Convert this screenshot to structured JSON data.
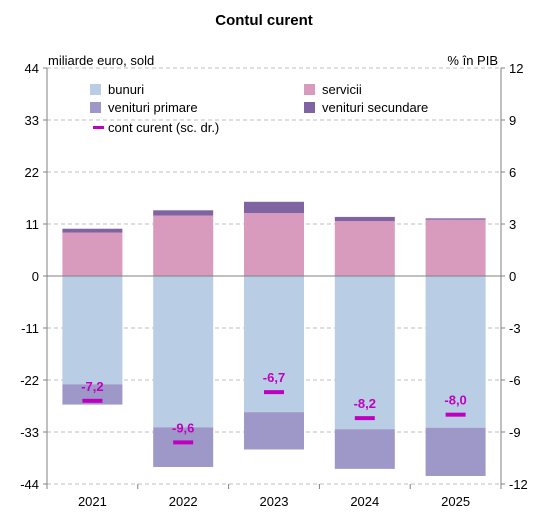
{
  "chart_data": {
    "type": "bar",
    "title": "Contul curent",
    "left_unit": "miliarde euro, sold",
    "right_unit": "% în PIB",
    "categories": [
      "2021",
      "2022",
      "2023",
      "2024",
      "2025"
    ],
    "ylim": [
      -44,
      44
    ],
    "yticks": [
      44,
      33,
      22,
      11,
      0,
      -11,
      -22,
      -33,
      -44
    ],
    "y2lim": [
      -12,
      12
    ],
    "y2ticks": [
      12,
      9,
      6,
      3,
      0,
      -3,
      -6,
      -9,
      -12
    ],
    "grid": true,
    "series": [
      {
        "name": "bunuri",
        "color": "#b9cde5",
        "values": [
          -22.9,
          -32.0,
          -28.8,
          -32.4,
          -32.1
        ],
        "axis": "left",
        "kind": "bar"
      },
      {
        "name": "servicii",
        "color": "#d99bbd",
        "values": [
          9.2,
          12.8,
          13.3,
          11.6,
          11.9
        ],
        "axis": "left",
        "kind": "bar"
      },
      {
        "name": "venituri primare",
        "color": "#9e98c8",
        "values": [
          -4.3,
          -8.4,
          -7.9,
          -8.4,
          -10.2
        ],
        "axis": "left",
        "kind": "bar"
      },
      {
        "name": "venituri secundare",
        "color": "#8064a2",
        "values": [
          0.8,
          1.1,
          2.4,
          0.9,
          0.3
        ],
        "axis": "left",
        "kind": "bar"
      },
      {
        "name": "cont curent (sc. dr.)",
        "color": "#c000c0",
        "values": [
          -7.2,
          -9.6,
          -6.7,
          -8.2,
          -8.0
        ],
        "labels": [
          "-7,2",
          "-9,6",
          "-6,7",
          "-8,2",
          "-8,0"
        ],
        "axis": "right",
        "kind": "marker"
      }
    ]
  }
}
